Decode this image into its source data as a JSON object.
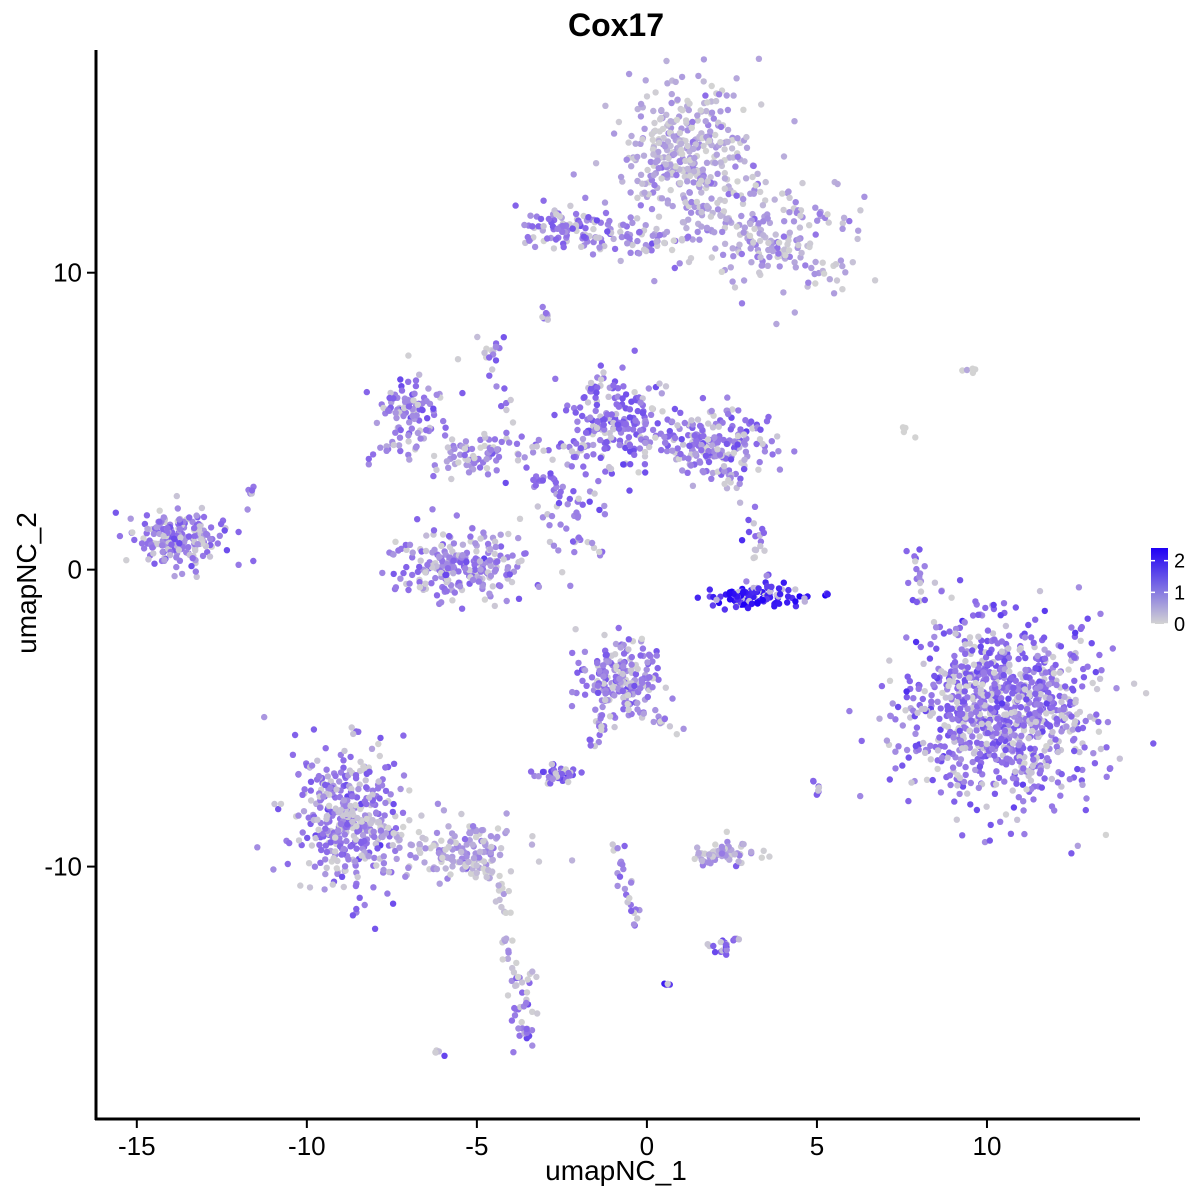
{
  "chart_data": {
    "type": "scatter",
    "title": "Cox17",
    "xlabel": "umapNC_1",
    "ylabel": "umapNC_2",
    "xlim": [
      -16.2,
      14.5
    ],
    "ylim": [
      -18.5,
      17.5
    ],
    "x_ticks": [
      -15,
      -10,
      -5,
      0,
      5,
      10
    ],
    "x_tick_labels": [
      "-15",
      "-10",
      "-5",
      "0",
      "5",
      "10"
    ],
    "y_ticks": [
      -10,
      0,
      10
    ],
    "y_tick_labels": [
      "-10",
      "0",
      "10"
    ],
    "grid": false,
    "color_scale": {
      "low_color": "#d3d3d3",
      "high_color": "#1f00f5",
      "min": 0,
      "max": 2.4,
      "ticks": [
        0,
        1,
        2
      ],
      "tick_labels": [
        "0",
        "1",
        "2"
      ],
      "legend_position": "right"
    },
    "point_color": "#8f6ee8",
    "clusters": [
      {
        "x": 1.2,
        "y": 14.0,
        "sx": 1.0,
        "sy": 1.2,
        "n": 380,
        "expr": 0.5
      },
      {
        "x": 3.8,
        "y": 11.2,
        "sx": 1.2,
        "sy": 0.9,
        "n": 160,
        "expr": 0.6
      },
      {
        "x": -2.0,
        "y": 11.5,
        "sx": 0.8,
        "sy": 0.35,
        "n": 110,
        "expr": 1.0
      },
      {
        "x": 0.2,
        "y": 11.1,
        "sx": 0.6,
        "sy": 0.25,
        "n": 40,
        "expr": 0.7
      },
      {
        "x": -7.0,
        "y": 5.3,
        "sx": 0.5,
        "sy": 0.6,
        "n": 90,
        "expr": 1.0
      },
      {
        "x": -5.0,
        "y": 3.9,
        "sx": 0.8,
        "sy": 0.4,
        "n": 80,
        "expr": 0.8
      },
      {
        "x": -0.8,
        "y": 5.0,
        "sx": 0.7,
        "sy": 0.8,
        "n": 200,
        "expr": 1.1
      },
      {
        "x": 2.0,
        "y": 4.2,
        "sx": 0.8,
        "sy": 0.55,
        "n": 200,
        "expr": 1.0
      },
      {
        "x": -2.5,
        "y": 2.7,
        "sx": 0.6,
        "sy": 0.8,
        "n": 60,
        "expr": 1.1
      },
      {
        "x": -5.4,
        "y": 0.2,
        "sx": 1.0,
        "sy": 0.6,
        "n": 240,
        "expr": 0.9
      },
      {
        "x": -13.8,
        "y": 1.1,
        "sx": 0.7,
        "sy": 0.5,
        "n": 200,
        "expr": 1.0
      },
      {
        "x": 3.3,
        "y": -0.9,
        "sx": 0.7,
        "sy": 0.18,
        "n": 120,
        "expr": 2.0
      },
      {
        "x": 3.3,
        "y": 0.8,
        "sx": 0.3,
        "sy": 0.6,
        "n": 20,
        "expr": 1.2
      },
      {
        "x": -0.8,
        "y": -3.7,
        "sx": 0.6,
        "sy": 0.7,
        "n": 200,
        "expr": 1.0
      },
      {
        "x": 10.5,
        "y": -4.8,
        "sx": 1.4,
        "sy": 1.5,
        "n": 950,
        "expr": 1.1
      },
      {
        "x": -8.8,
        "y": -8.2,
        "sx": 0.8,
        "sy": 1.2,
        "n": 380,
        "expr": 1.0
      },
      {
        "x": -5.3,
        "y": -9.5,
        "sx": 1.0,
        "sy": 0.5,
        "n": 120,
        "expr": 0.6
      },
      {
        "x": -3.6,
        "y": -14.8,
        "sx": 0.25,
        "sy": 0.8,
        "n": 40,
        "expr": 1.0
      },
      {
        "x": 2.3,
        "y": -9.6,
        "sx": 0.5,
        "sy": 0.2,
        "n": 60,
        "expr": 0.5
      },
      {
        "x": -2.7,
        "y": -6.9,
        "sx": 0.3,
        "sy": 0.2,
        "n": 40,
        "expr": 1.2
      },
      {
        "x": 2.3,
        "y": -12.7,
        "sx": 0.2,
        "sy": 0.2,
        "n": 20,
        "expr": 1.3
      },
      {
        "x": 8.0,
        "y": -0.3,
        "sx": 0.2,
        "sy": 0.6,
        "n": 20,
        "expr": 1.0
      },
      {
        "x": 5.0,
        "y": -7.4,
        "sx": 0.1,
        "sy": 0.2,
        "n": 8,
        "expr": 1.2
      },
      {
        "x": 0.6,
        "y": -14.0,
        "sx": 0.05,
        "sy": 0.05,
        "n": 4,
        "expr": 1.5
      },
      {
        "x": -6.1,
        "y": -16.3,
        "sx": 0.1,
        "sy": 0.05,
        "n": 5,
        "expr": 1.5
      },
      {
        "x": 9.5,
        "y": 6.7,
        "sx": 0.2,
        "sy": 0.05,
        "n": 5,
        "expr": 0.1
      },
      {
        "x": -3.0,
        "y": 8.5,
        "sx": 0.1,
        "sy": 0.15,
        "n": 8,
        "expr": 1.0
      },
      {
        "x": -4.6,
        "y": 7.3,
        "sx": 0.2,
        "sy": 0.25,
        "n": 12,
        "expr": 1.2
      },
      {
        "x": -11.7,
        "y": 2.7,
        "sx": 0.1,
        "sy": 0.1,
        "n": 5,
        "expr": 1.0
      }
    ],
    "trails": [
      {
        "x1": -9.5,
        "y1": -7.8,
        "x2": -4.4,
        "y2": -10.4,
        "n": 60,
        "expr": 0.3
      },
      {
        "x1": -4.4,
        "y1": -10.4,
        "x2": -3.8,
        "y2": -14.5,
        "n": 25,
        "expr": 0.3
      },
      {
        "x1": -0.8,
        "y1": -4.5,
        "x2": 1.1,
        "y2": -5.4,
        "n": 20,
        "expr": 0.7
      },
      {
        "x1": -1.3,
        "y1": -4.5,
        "x2": -1.6,
        "y2": -6.2,
        "n": 15,
        "expr": 1.0
      },
      {
        "x1": -0.9,
        "y1": -9.3,
        "x2": -0.3,
        "y2": -12.0,
        "n": 25,
        "expr": 0.8
      },
      {
        "x1": 1.2,
        "y1": 12.5,
        "x2": 5.8,
        "y2": 9.5,
        "n": 40,
        "expr": 0.6
      },
      {
        "x1": -3.0,
        "y1": 1.8,
        "x2": -1.3,
        "y2": 0.6,
        "n": 12,
        "expr": 0.9
      },
      {
        "x1": -4.7,
        "y1": 7.1,
        "x2": -3.8,
        "y2": 4.3,
        "n": 12,
        "expr": 1.0
      },
      {
        "x1": -3.5,
        "y1": 4.2,
        "x2": -1.8,
        "y2": 4.0,
        "n": 15,
        "expr": 0.9
      },
      {
        "x1": 2.4,
        "y1": 3.3,
        "x2": 2.6,
        "y2": 2.3,
        "n": 8,
        "expr": 0.4
      },
      {
        "x1": 7.6,
        "y1": 4.9,
        "x2": 7.9,
        "y2": 4.5,
        "n": 4,
        "expr": 0.0
      },
      {
        "x1": -8.2,
        "y1": 3.8,
        "x2": -6.6,
        "y2": 4.6,
        "n": 15,
        "expr": 0.7
      }
    ]
  }
}
